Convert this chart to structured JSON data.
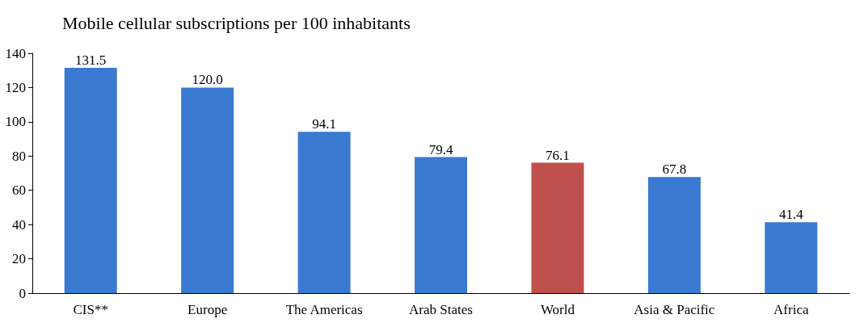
{
  "chart_data": {
    "type": "bar",
    "title": "Mobile cellular subscriptions per 100 inhabitants",
    "categories": [
      "CIS**",
      "Europe",
      "The Americas",
      "Arab States",
      "World",
      "Asia & Pacific",
      "Africa"
    ],
    "values": [
      131.5,
      120.0,
      94.1,
      79.4,
      76.1,
      67.8,
      41.4
    ],
    "value_labels": [
      "131.5",
      "120.0",
      "94.1",
      "79.4",
      "76.1",
      "67.8",
      "41.4"
    ],
    "colors": [
      "#3a7ad0",
      "#3a7ad0",
      "#3a7ad0",
      "#3a7ad0",
      "#c0504d",
      "#3a7ad0",
      "#3a7ad0"
    ],
    "ylim": [
      0,
      140
    ],
    "yticks": [
      0,
      20,
      40,
      60,
      80,
      100,
      120,
      140
    ],
    "grid": false
  }
}
